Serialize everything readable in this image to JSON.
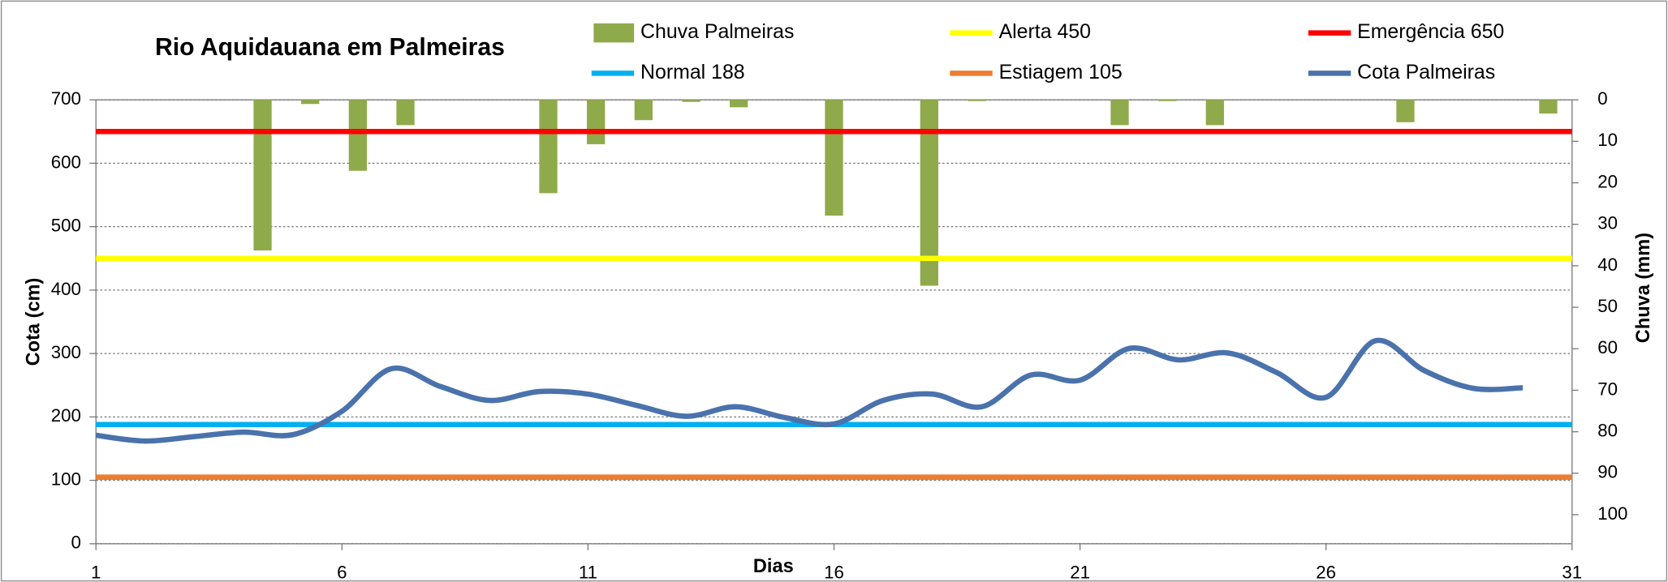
{
  "chart_data": {
    "type": "combo",
    "title": "Rio Aquidauana em Palmeiras",
    "x_label": "Dias",
    "y_label": "Cota   (cm)",
    "y2_label": "Chuva (mm)",
    "xlim": [
      1,
      31
    ],
    "xticks": [
      1,
      6,
      11,
      16,
      21,
      26,
      31
    ],
    "x2lim": [
      0.5,
      31.5
    ],
    "ylim": [
      0,
      700
    ],
    "yticks": [
      0,
      100,
      200,
      300,
      400,
      500,
      600,
      700
    ],
    "y2lim": [
      0,
      107
    ],
    "y2ticks": [
      0,
      10,
      20,
      30,
      40,
      50,
      60,
      70,
      80,
      90,
      100
    ],
    "y2_reversed": true,
    "grid": true,
    "rain": {
      "name": "Chuva  Palmeiras",
      "color": "#8faa4b",
      "axis": "y2",
      "x": [
        4,
        5,
        6,
        7,
        10,
        11,
        12,
        13,
        14,
        16,
        18,
        19,
        22,
        23,
        24,
        28,
        31
      ],
      "values": [
        36.3,
        1,
        17.1,
        6.1,
        22.5,
        10.7,
        4.9,
        0.5,
        1.8,
        27.9,
        44.8,
        0.3,
        6.1,
        0.3,
        6.1,
        5.4,
        3.3
      ]
    },
    "reference_lines": [
      {
        "name": "Alerta 450",
        "value": 450,
        "color": "#ffff00"
      },
      {
        "name": "Emergência 650",
        "value": 650,
        "color": "#ff0000"
      },
      {
        "name": "Normal  188",
        "value": 188,
        "color": "#00b0f0"
      },
      {
        "name": "Estiagem 105",
        "value": 105,
        "color": "#ed7d31"
      }
    ],
    "series": [
      {
        "name": "Cota Palmeiras",
        "color": "#4a72ac",
        "x": [
          1,
          2,
          3,
          4,
          5,
          6,
          7,
          8,
          9,
          10,
          11,
          12,
          13,
          14,
          15,
          16,
          17,
          18,
          19,
          20,
          21,
          22,
          23,
          24,
          25,
          26,
          27,
          28,
          29,
          30
        ],
        "values": [
          171,
          162,
          169,
          176,
          172,
          209,
          276,
          248,
          226,
          240,
          236,
          218,
          201,
          216,
          199,
          189,
          226,
          236,
          216,
          266,
          258,
          308,
          290,
          301,
          270,
          231,
          320,
          273,
          245,
          246
        ]
      }
    ]
  }
}
